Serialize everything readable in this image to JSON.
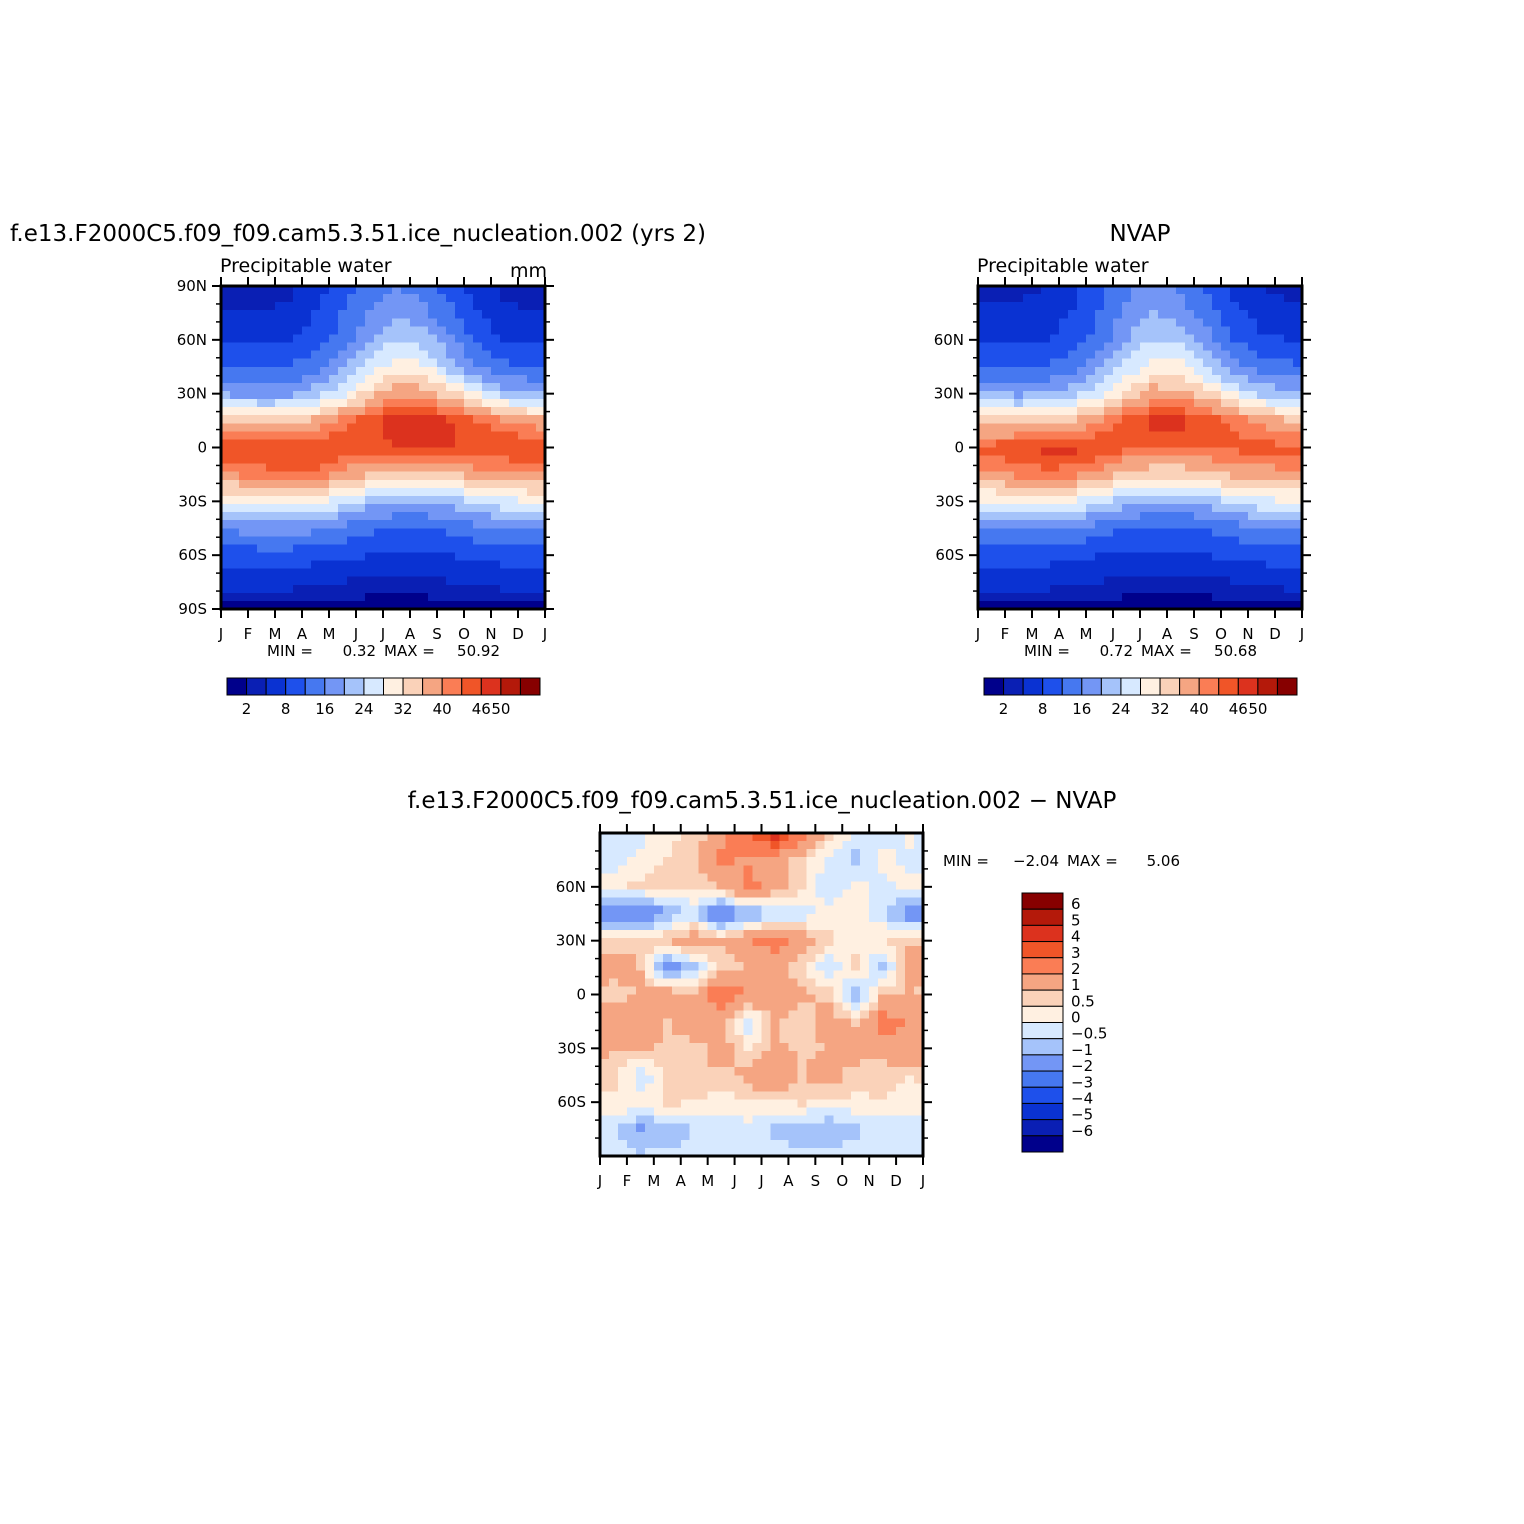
{
  "chart_data": [
    {
      "type": "heatmap",
      "title": "f.e13.F2000C5.f09_f09.cam5.3.51.ice_nucleation.002 (yrs 2)",
      "subtitle_left": "Precipitable water",
      "subtitle_right": "mm",
      "x_tick_labels": [
        "J",
        "F",
        "M",
        "A",
        "M",
        "J",
        "J",
        "A",
        "S",
        "O",
        "N",
        "D",
        "J"
      ],
      "y_tick_labels": [
        "90N",
        "60N",
        "30N",
        "0",
        "30S",
        "60S",
        "90S"
      ],
      "ylim": [
        -90,
        90
      ],
      "months": [
        "Jan",
        "Feb",
        "Mar",
        "Apr",
        "May",
        "Jun",
        "Jul",
        "Aug",
        "Sep",
        "Oct",
        "Nov",
        "Dec"
      ],
      "latitudes": [
        90,
        75,
        60,
        45,
        30,
        15,
        0,
        -15,
        -30,
        -45,
        -60,
        -75,
        -90
      ],
      "values": [
        [
          2,
          2,
          3,
          6,
          10,
          14,
          16,
          14,
          10,
          5,
          3,
          2
        ],
        [
          4,
          4,
          5,
          8,
          12,
          16,
          19,
          17,
          13,
          8,
          5,
          4
        ],
        [
          7,
          7,
          8,
          10,
          14,
          20,
          24,
          22,
          17,
          11,
          8,
          7
        ],
        [
          11,
          11,
          12,
          14,
          19,
          25,
          30,
          29,
          22,
          16,
          13,
          12
        ],
        [
          19,
          18,
          19,
          22,
          27,
          34,
          39,
          38,
          34,
          28,
          22,
          20
        ],
        [
          36,
          34,
          34,
          37,
          41,
          45,
          48,
          48,
          46,
          43,
          40,
          38
        ],
        [
          46,
          45,
          46,
          46,
          46,
          45,
          46,
          46,
          46,
          46,
          46,
          46
        ],
        [
          40,
          42,
          43,
          42,
          39,
          36,
          34,
          34,
          36,
          38,
          39,
          40
        ],
        [
          28,
          29,
          30,
          29,
          26,
          22,
          20,
          20,
          22,
          25,
          27,
          28
        ],
        [
          17,
          18,
          18,
          17,
          15,
          13,
          12,
          12,
          13,
          15,
          16,
          17
        ],
        [
          10,
          10,
          10,
          10,
          9,
          8,
          7,
          7,
          8,
          9,
          10,
          10
        ],
        [
          5,
          5,
          5,
          4,
          4,
          3,
          3,
          3,
          4,
          4,
          5,
          5
        ],
        [
          1,
          1,
          1,
          1,
          1,
          1,
          1,
          1,
          1,
          1,
          1,
          1
        ]
      ],
      "min_label": "MIN =",
      "min_value": "0.32",
      "max_label": "MAX =",
      "max_value": "50.92",
      "colorbar_ticks": [
        "2",
        "8",
        "16",
        "24",
        "32",
        "40",
        "46",
        "50"
      ]
    },
    {
      "type": "heatmap",
      "title": "NVAP",
      "subtitle_left": "Precipitable water",
      "x_tick_labels": [
        "J",
        "F",
        "M",
        "A",
        "M",
        "J",
        "J",
        "A",
        "S",
        "O",
        "N",
        "D",
        "J"
      ],
      "y_tick_labels": [
        "60N",
        "30N",
        "0",
        "30S",
        "60S"
      ],
      "ylim": [
        -90,
        90
      ],
      "months": [
        "Jan",
        "Feb",
        "Mar",
        "Apr",
        "May",
        "Jun",
        "Jul",
        "Aug",
        "Sep",
        "Oct",
        "Nov",
        "Dec"
      ],
      "latitudes": [
        90,
        75,
        60,
        45,
        30,
        15,
        0,
        -15,
        -30,
        -45,
        -60,
        -75,
        -90
      ],
      "values": [
        [
          3,
          3,
          4,
          7,
          11,
          15,
          18,
          15,
          11,
          6,
          4,
          3
        ],
        [
          5,
          5,
          6,
          8,
          12,
          17,
          20,
          18,
          14,
          9,
          6,
          5
        ],
        [
          8,
          8,
          8,
          10,
          14,
          20,
          24,
          23,
          18,
          12,
          9,
          8
        ],
        [
          12,
          12,
          12,
          14,
          19,
          25,
          30,
          29,
          23,
          17,
          14,
          13
        ],
        [
          20,
          19,
          20,
          22,
          27,
          33,
          38,
          38,
          34,
          28,
          23,
          21
        ],
        [
          34,
          33,
          34,
          36,
          40,
          44,
          47,
          47,
          45,
          42,
          39,
          36
        ],
        [
          44,
          46,
          47,
          47,
          46,
          44,
          44,
          44,
          44,
          44,
          44,
          44
        ],
        [
          39,
          41,
          42,
          41,
          38,
          35,
          33,
          33,
          35,
          37,
          38,
          39
        ],
        [
          28,
          29,
          29,
          28,
          25,
          22,
          20,
          20,
          22,
          25,
          27,
          28
        ],
        [
          17,
          17,
          17,
          16,
          14,
          12,
          11,
          11,
          12,
          14,
          16,
          17
        ],
        [
          10,
          10,
          10,
          9,
          8,
          7,
          7,
          7,
          8,
          9,
          10,
          10
        ],
        [
          5,
          5,
          5,
          4,
          4,
          3,
          3,
          3,
          3,
          4,
          4,
          5
        ],
        [
          1,
          1,
          1,
          1,
          1,
          1,
          1,
          1,
          1,
          1,
          1,
          1
        ]
      ],
      "min_label": "MIN =",
      "min_value": "0.72",
      "max_label": "MAX =",
      "max_value": "50.68",
      "colorbar_ticks": [
        "2",
        "8",
        "16",
        "24",
        "32",
        "40",
        "46",
        "50"
      ]
    },
    {
      "type": "heatmap",
      "title": "f.e13.F2000C5.f09_f09.cam5.3.51.ice_nucleation.002  −  NVAP",
      "x_tick_labels": [
        "J",
        "F",
        "M",
        "A",
        "M",
        "J",
        "J",
        "A",
        "S",
        "O",
        "N",
        "D",
        "J"
      ],
      "y_tick_labels": [
        "60N",
        "30N",
        "0",
        "30S",
        "60S"
      ],
      "ylim": [
        -90,
        90
      ],
      "months": [
        "Jan",
        "Feb",
        "Mar",
        "Apr",
        "May",
        "Jun",
        "Jul",
        "Aug",
        "Sep",
        "Oct",
        "Nov",
        "Dec"
      ],
      "latitudes": [
        90,
        75,
        60,
        45,
        30,
        15,
        0,
        -15,
        -30,
        -45,
        -60,
        -75,
        -90
      ],
      "values": [
        [
          -0.4,
          -0.2,
          0.3,
          0.6,
          1.5,
          3.0,
          4.5,
          2.5,
          1.0,
          -0.3,
          -0.5,
          0.2
        ],
        [
          -0.3,
          0.2,
          0.5,
          1.0,
          2.2,
          1.8,
          1.2,
          0.6,
          -0.2,
          -0.6,
          0.3,
          -0.2
        ],
        [
          0.4,
          0.6,
          0.8,
          0.5,
          1.0,
          2.5,
          1.5,
          0.5,
          -0.4,
          0.2,
          -0.2,
          0.3
        ],
        [
          -1.5,
          -2.0,
          -1.0,
          -0.3,
          -2.0,
          -1.2,
          -0.6,
          -0.3,
          0.3,
          0.5,
          -0.4,
          -1.5
        ],
        [
          0.6,
          0.8,
          1.0,
          1.5,
          1.2,
          2.0,
          2.5,
          1.5,
          0.6,
          0.3,
          0.5,
          0.8
        ],
        [
          1.5,
          1.0,
          -1.5,
          -0.8,
          0.6,
          1.0,
          1.2,
          0.5,
          -0.5,
          0.8,
          -0.8,
          1.5
        ],
        [
          0.5,
          1.2,
          1.5,
          1.0,
          3.0,
          2.0,
          1.5,
          1.2,
          0.8,
          -1.0,
          0.8,
          1.0
        ],
        [
          2.0,
          1.5,
          1.0,
          1.8,
          1.2,
          -0.5,
          1.0,
          0.6,
          1.5,
          0.8,
          2.5,
          2.0
        ],
        [
          1.0,
          1.2,
          0.8,
          0.6,
          1.5,
          0.5,
          1.2,
          0.8,
          1.0,
          1.5,
          1.2,
          1.8
        ],
        [
          0.8,
          -0.5,
          0.6,
          1.0,
          0.8,
          1.2,
          2.0,
          1.0,
          1.5,
          0.6,
          0.8,
          0.5
        ],
        [
          0.3,
          0.5,
          0.6,
          0.5,
          0.3,
          0.4,
          0.5,
          0.6,
          0.3,
          0.4,
          0.5,
          0.3
        ],
        [
          -0.4,
          -1.2,
          -0.8,
          -0.5,
          -0.3,
          -0.2,
          -0.6,
          -0.9,
          -1.0,
          -0.6,
          -0.4,
          -0.5
        ],
        [
          -0.3,
          -0.4,
          -0.4,
          -0.3,
          -0.3,
          -0.2,
          -0.3,
          -0.4,
          -0.3,
          -0.3,
          -0.2,
          -0.3
        ]
      ],
      "min_label": "MIN =",
      "min_value": "−2.04",
      "max_label": "MAX =",
      "max_value": "5.06",
      "colorbar_ticks": [
        "6",
        "5",
        "4",
        "3",
        "2",
        "1",
        "0.5",
        "0",
        "−0.5",
        "−1",
        "−2",
        "−3",
        "−4",
        "−5",
        "−6"
      ]
    }
  ],
  "colors": {
    "abs_levels": [
      0,
      2,
      4,
      8,
      12,
      16,
      20,
      24,
      28,
      32,
      36,
      40,
      43,
      46,
      48,
      50
    ],
    "abs_palette": [
      "#00008b",
      "#0a1fb4",
      "#0a32d2",
      "#1e50eb",
      "#4678f0",
      "#7396f5",
      "#a5c3fa",
      "#d7e9ff",
      "#fff0e1",
      "#fad2b9",
      "#f5a582",
      "#fa7d55",
      "#f05528",
      "#dc321e",
      "#b4190a",
      "#870000"
    ],
    "diff_levels": [
      -6,
      -5,
      -4,
      -3,
      -2,
      -1,
      -0.5,
      0,
      0.5,
      1,
      2,
      3,
      4,
      5,
      6
    ],
    "diff_palette": [
      "#00008b",
      "#0a1fb4",
      "#0a32d2",
      "#1e50eb",
      "#4678f0",
      "#7396f5",
      "#a5c3fa",
      "#d7e9ff",
      "#fff0e1",
      "#fad2b9",
      "#f5a582",
      "#fa7d55",
      "#f05528",
      "#dc321e",
      "#b4190a",
      "#870000"
    ]
  }
}
